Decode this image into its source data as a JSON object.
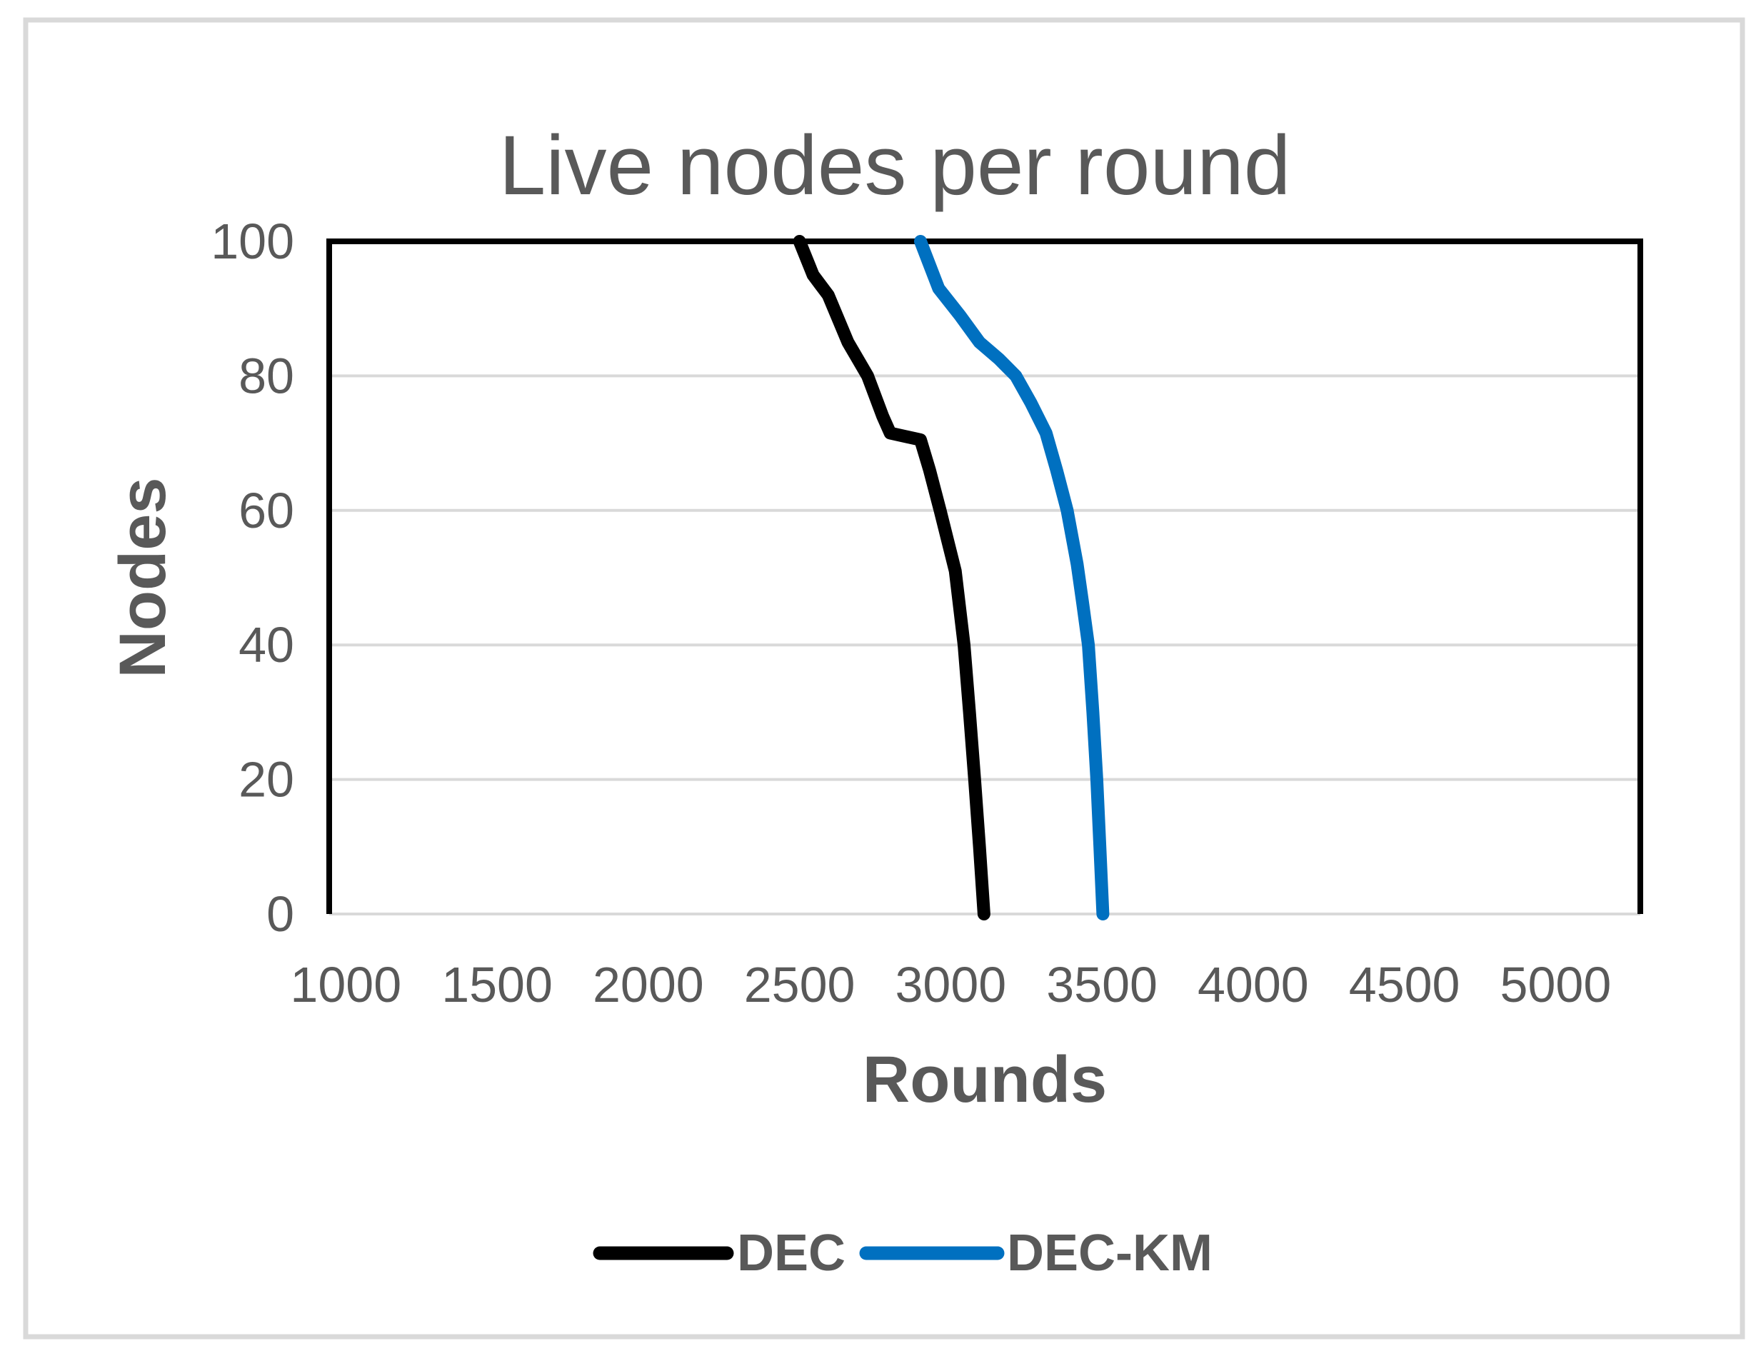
{
  "figure": {
    "background_color": "#FFFFFF",
    "frame_border_color": "#D9D9D9",
    "text_color": "#595959",
    "gridline_color": "#D9D9D9",
    "plot_border_color": "#000000"
  },
  "chart_data": {
    "type": "line",
    "title": "Live nodes per round",
    "xlabel": "Rounds",
    "ylabel": "Nodes",
    "xlim": [
      945,
      5280
    ],
    "ylim": [
      0,
      100
    ],
    "x_ticks": [
      "1000",
      "1500",
      "2000",
      "2500",
      "3000",
      "3500",
      "4000",
      "4500",
      "5000"
    ],
    "y_ticks": [
      "0",
      "20",
      "40",
      "60",
      "80",
      "100"
    ],
    "grid": "horizontal",
    "legend_position": "bottom-center",
    "series": [
      {
        "name": "DEC",
        "color": "#000000",
        "points": [
          [
            2500,
            100
          ],
          [
            2545,
            95
          ],
          [
            2595,
            92
          ],
          [
            2660,
            85
          ],
          [
            2725,
            80
          ],
          [
            2775,
            74
          ],
          [
            2800,
            71.5
          ],
          [
            2900,
            70.5
          ],
          [
            2930,
            66
          ],
          [
            2965,
            60
          ],
          [
            3015,
            51
          ],
          [
            3044,
            40
          ],
          [
            3062,
            30
          ],
          [
            3079,
            20
          ],
          [
            3095,
            10
          ],
          [
            3110,
            0
          ]
        ]
      },
      {
        "name": "DEC-KM",
        "color": "#0070C0",
        "points": [
          [
            2900,
            100
          ],
          [
            2960,
            93
          ],
          [
            3030,
            89
          ],
          [
            3095,
            85
          ],
          [
            3160,
            82.5
          ],
          [
            3215,
            80
          ],
          [
            3265,
            76
          ],
          [
            3315,
            71.5
          ],
          [
            3350,
            66
          ],
          [
            3385,
            60
          ],
          [
            3418,
            52
          ],
          [
            3437,
            46
          ],
          [
            3455,
            40
          ],
          [
            3470,
            30
          ],
          [
            3483,
            20
          ],
          [
            3493,
            10
          ],
          [
            3503,
            0
          ]
        ]
      }
    ]
  }
}
